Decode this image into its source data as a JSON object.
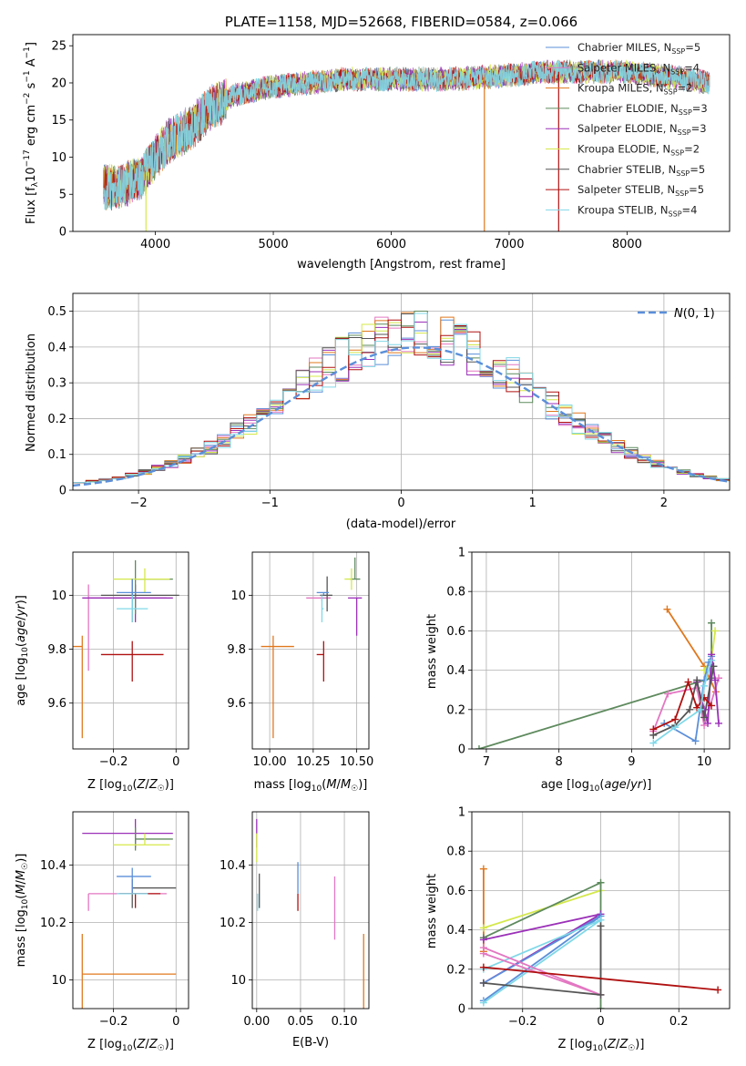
{
  "chart_data": [
    {
      "id": "spectrum",
      "type": "line",
      "title": "PLATE=1158, MJD=52668, FIBERID=0584, z=0.066",
      "xlabel": "wavelength [Angstrom, rest frame]",
      "ylabel": "Flux [f_λ 10^-17 erg cm^-2 s^-1 A^-1]",
      "xlim": [
        3300,
        8870
      ],
      "ylim": [
        0,
        26.5
      ],
      "xticks": [
        4000,
        5000,
        6000,
        7000,
        8000
      ],
      "yticks": [
        0,
        5,
        10,
        15,
        20,
        25
      ],
      "grid": false,
      "legend_position": "right",
      "continuum": {
        "x": [
          3560,
          3700,
          3900,
          4000,
          4100,
          4300,
          4500,
          4700,
          5000,
          5300,
          5600,
          6000,
          6500,
          7000,
          7300,
          7600,
          8000,
          8500,
          8700
        ],
        "y": [
          6,
          6,
          7.5,
          10,
          12,
          14,
          17,
          18.5,
          19.5,
          20,
          20.5,
          20.5,
          20.5,
          21,
          21.5,
          21.5,
          21.5,
          20.5,
          20
        ]
      },
      "series": [
        {
          "name": "Chabrier MILES, N_SSP=5",
          "color": "#5b8fd9"
        },
        {
          "name": "Salpeter MILES, N_SSP=4",
          "color": "#e377c2"
        },
        {
          "name": "Kroupa MILES, N_SSP=2",
          "color": "#e0781e"
        },
        {
          "name": "Chabrier ELODIE, N_SSP=3",
          "color": "#5e8a5e"
        },
        {
          "name": "Salpeter ELODIE, N_SSP=3",
          "color": "#9b30b8"
        },
        {
          "name": "Kroupa ELODIE, N_SSP=2",
          "color": "#d4e84a"
        },
        {
          "name": "Chabrier STELIB, N_SSP=5",
          "color": "#555555"
        },
        {
          "name": "Salpeter STELIB, N_SSP=5",
          "color": "#b01010"
        },
        {
          "name": "Kroupa STELIB, N_SSP=4",
          "color": "#80d8e8"
        }
      ]
    },
    {
      "id": "residuals",
      "type": "line",
      "xlabel": "(data-model)/error",
      "ylabel": "Normed distribution",
      "xlim": [
        -2.5,
        2.5
      ],
      "ylim": [
        0,
        0.55
      ],
      "xticks": [
        -2,
        -1,
        0,
        1,
        2
      ],
      "yticks": [
        0.0,
        0.1,
        0.2,
        0.3,
        0.4,
        0.5
      ],
      "grid": true,
      "legend": "N(0, 1)",
      "legend_position": "top-right",
      "reference": {
        "mean": 0.12,
        "sigma": 1.0
      },
      "binning": {
        "start": -2.5,
        "width": 0.1,
        "count": 50
      }
    },
    {
      "id": "age_vs_Z",
      "type": "scatter",
      "xlabel": "Z [log10(Z/Z☉)]",
      "ylabel": "age [log10(age/yr)]",
      "xlim": [
        -0.33,
        0.04
      ],
      "ylim": [
        9.43,
        10.16
      ],
      "xticks": [
        -0.2,
        0.0
      ],
      "yticks": [
        9.6,
        9.8,
        10.0
      ],
      "grid": true,
      "points": [
        {
          "color": "#e0781e",
          "x": -0.3,
          "y": 9.81,
          "xerr": [
            0.3,
            0.0
          ],
          "yerr": [
            0.34,
            0.04
          ]
        },
        {
          "color": "#b01010",
          "x": -0.14,
          "y": 9.78,
          "xerr": [
            0.1,
            0.1
          ],
          "yerr": [
            0.1,
            0.05
          ]
        },
        {
          "color": "#e377c2",
          "x": -0.28,
          "y": 9.99,
          "xerr": [
            0.0,
            0.25
          ],
          "yerr": [
            0.27,
            0.05
          ]
        },
        {
          "color": "#9b30b8",
          "x": -0.13,
          "y": 9.99,
          "xerr": [
            0.17,
            0.12
          ],
          "yerr": [
            0.09,
            0.05
          ]
        },
        {
          "color": "#5e8a5e",
          "x": -0.13,
          "y": 10.06,
          "xerr": [
            0.0,
            0.12
          ],
          "yerr": [
            0.13,
            0.07
          ]
        },
        {
          "color": "#d4e84a",
          "x": -0.1,
          "y": 10.06,
          "xerr": [
            0.1,
            0.08
          ],
          "yerr": [
            0.05,
            0.04
          ]
        },
        {
          "color": "#555555",
          "x": -0.14,
          "y": 10.0,
          "xerr": [
            0.1,
            0.15
          ],
          "yerr": [
            0.1,
            0.06
          ]
        },
        {
          "color": "#5b8fd9",
          "x": -0.14,
          "y": 10.01,
          "xerr": [
            0.05,
            0.06
          ],
          "yerr": [
            0.07,
            0.05
          ]
        },
        {
          "color": "#80d8e8",
          "x": -0.14,
          "y": 9.95,
          "xerr": [
            0.05,
            0.05
          ],
          "yerr": [
            0.05,
            0.05
          ]
        }
      ]
    },
    {
      "id": "age_vs_mass",
      "type": "scatter",
      "xlabel": "mass [log10(M/M☉)]",
      "ylabel": "",
      "xlim": [
        9.9,
        10.57
      ],
      "ylim": [
        9.43,
        10.16
      ],
      "xticks": [
        10.0,
        10.25,
        10.5
      ],
      "xticklabels": [
        "10.00",
        "10.25",
        "10.50"
      ],
      "yticks": [
        9.6,
        9.8,
        10.0
      ],
      "grid": true,
      "points": [
        {
          "color": "#e0781e",
          "x": 10.02,
          "y": 9.81,
          "xerr": [
            0.07,
            0.12
          ],
          "yerr": [
            0.34,
            0.04
          ]
        },
        {
          "color": "#b01010",
          "x": 10.31,
          "y": 9.78,
          "xerr": [
            0.04,
            0.0
          ],
          "yerr": [
            0.1,
            0.05
          ]
        },
        {
          "color": "#e377c2",
          "x": 10.3,
          "y": 9.99,
          "xerr": [
            0.09,
            0.05
          ],
          "yerr": [
            0.01,
            0.0
          ]
        },
        {
          "color": "#9b30b8",
          "x": 10.5,
          "y": 9.99,
          "xerr": [
            0.05,
            0.03
          ],
          "yerr": [
            0.14,
            0.0
          ]
        },
        {
          "color": "#5e8a5e",
          "x": 10.49,
          "y": 10.06,
          "xerr": [
            0.03,
            0.03
          ],
          "yerr": [
            0.0,
            0.08
          ]
        },
        {
          "color": "#d4e84a",
          "x": 10.47,
          "y": 10.06,
          "xerr": [
            0.04,
            0.0
          ],
          "yerr": [
            0.04,
            0.04
          ]
        },
        {
          "color": "#555555",
          "x": 10.33,
          "y": 10.0,
          "xerr": [
            0.04,
            0.03
          ],
          "yerr": [
            0.06,
            0.07
          ]
        },
        {
          "color": "#5b8fd9",
          "x": 10.31,
          "y": 10.01,
          "xerr": [
            0.04,
            0.03
          ],
          "yerr": [
            0.01,
            0.0
          ]
        },
        {
          "color": "#80d8e8",
          "x": 10.3,
          "y": 9.95,
          "xerr": [
            0.0,
            0.01
          ],
          "yerr": [
            0.05,
            0.05
          ]
        }
      ]
    },
    {
      "id": "weight_vs_age",
      "type": "line",
      "xlabel": "age [log10(age/yr)]",
      "ylabel": "mass weight",
      "xlim": [
        6.8,
        10.35
      ],
      "ylim": [
        0,
        1.0
      ],
      "xticks": [
        7,
        8,
        9,
        10
      ],
      "yticks": [
        0.0,
        0.2,
        0.4,
        0.6,
        0.8,
        1.0
      ],
      "grid": true,
      "series": [
        {
          "color": "#5e8a5e",
          "x": [
            6.9,
            10.1,
            10.1
          ],
          "y": [
            0.0,
            0.36,
            0.64
          ]
        },
        {
          "color": "#e0781e",
          "x": [
            9.49,
            10.0,
            10.16
          ],
          "y": [
            0.71,
            0.42,
            0.29
          ]
        },
        {
          "color": "#d4e84a",
          "x": [
            10.0,
            10.1,
            10.15
          ],
          "y": [
            0.4,
            0.45,
            0.6
          ]
        },
        {
          "color": "#5b8fd9",
          "x": [
            9.45,
            9.88,
            10.0,
            10.06,
            10.1
          ],
          "y": [
            0.13,
            0.04,
            0.35,
            0.44,
            0.47
          ]
        },
        {
          "color": "#e377c2",
          "x": [
            9.3,
            9.5,
            9.9,
            10.0,
            10.2
          ],
          "y": [
            0.09,
            0.28,
            0.31,
            0.12,
            0.36
          ]
        },
        {
          "color": "#9b30b8",
          "x": [
            9.9,
            10.0,
            10.05,
            10.1,
            10.15,
            10.2
          ],
          "y": [
            0.34,
            0.2,
            0.13,
            0.48,
            0.35,
            0.13
          ]
        },
        {
          "color": "#555555",
          "x": [
            9.3,
            9.6,
            9.8,
            9.9,
            10.0,
            10.13
          ],
          "y": [
            0.07,
            0.12,
            0.2,
            0.35,
            0.16,
            0.42
          ]
        },
        {
          "color": "#b01010",
          "x": [
            9.3,
            9.6,
            9.78,
            9.9,
            10.0,
            10.1
          ],
          "y": [
            0.1,
            0.15,
            0.34,
            0.21,
            0.26,
            0.22
          ]
        },
        {
          "color": "#80d8e8",
          "x": [
            9.3,
            9.6,
            9.95,
            10.0,
            10.1
          ],
          "y": [
            0.03,
            0.11,
            0.2,
            0.32,
            0.45
          ]
        }
      ]
    },
    {
      "id": "mass_vs_Z",
      "type": "scatter",
      "xlabel": "Z [log10(Z/Z☉)]",
      "ylabel": "mass [log10(M/M☉)]",
      "xlim": [
        -0.33,
        0.04
      ],
      "ylim": [
        9.9,
        10.585
      ],
      "xticks": [
        -0.2,
        0.0
      ],
      "yticks": [
        10.0,
        10.2,
        10.4
      ],
      "grid": true,
      "points": [
        {
          "color": "#e0781e",
          "x": -0.3,
          "y": 10.02,
          "xerr": [
            0.0,
            0.3
          ],
          "yerr": [
            0.12,
            0.14
          ]
        },
        {
          "color": "#9b30b8",
          "x": -0.13,
          "y": 10.51,
          "xerr": [
            0.17,
            0.12
          ],
          "yerr": [
            0.05,
            0.05
          ]
        },
        {
          "color": "#5e8a5e",
          "x": -0.13,
          "y": 10.49,
          "xerr": [
            0.0,
            0.12
          ],
          "yerr": [
            0.04,
            0.04
          ]
        },
        {
          "color": "#d4e84a",
          "x": -0.1,
          "y": 10.47,
          "xerr": [
            0.1,
            0.08
          ],
          "yerr": [
            0.0,
            0.04
          ]
        },
        {
          "color": "#555555",
          "x": -0.14,
          "y": 10.32,
          "xerr": [
            0.0,
            0.14
          ],
          "yerr": [
            0.07,
            0.03
          ]
        },
        {
          "color": "#5b8fd9",
          "x": -0.14,
          "y": 10.36,
          "xerr": [
            0.05,
            0.06
          ],
          "yerr": [
            0.06,
            0.03
          ]
        },
        {
          "color": "#e377c2",
          "x": -0.28,
          "y": 10.3,
          "xerr": [
            0.0,
            0.25
          ],
          "yerr": [
            0.06,
            0.0
          ]
        },
        {
          "color": "#b01010",
          "x": -0.13,
          "y": 10.3,
          "xerr": [
            0.05,
            0.08
          ],
          "yerr": [
            0.05,
            0.0
          ]
        },
        {
          "color": "#80d8e8",
          "x": -0.14,
          "y": 10.3,
          "xerr": [
            0.05,
            0.05
          ],
          "yerr": [
            0.0,
            0.0
          ]
        }
      ]
    },
    {
      "id": "mass_vs_EBV",
      "type": "scatter",
      "xlabel": "E(B-V)",
      "ylabel": "",
      "xlim": [
        -0.005,
        0.128
      ],
      "ylim": [
        9.9,
        10.585
      ],
      "xticks": [
        0.0,
        0.05,
        0.1
      ],
      "xticklabels": [
        "0.00",
        "0.05",
        "0.10"
      ],
      "yticks": [
        10.0,
        10.2,
        10.4
      ],
      "grid": true,
      "points": [
        {
          "color": "#e0781e",
          "x": 0.122,
          "y": 10.02,
          "xerr": [
            0,
            0
          ],
          "yerr": [
            0.12,
            0.14
          ]
        },
        {
          "color": "#e377c2",
          "x": 0.089,
          "y": 10.3,
          "xerr": [
            0,
            0
          ],
          "yerr": [
            0.16,
            0.06
          ]
        },
        {
          "color": "#b01010",
          "x": 0.047,
          "y": 10.3,
          "xerr": [
            0,
            0
          ],
          "yerr": [
            0.06,
            0.0
          ]
        },
        {
          "color": "#5b8fd9",
          "x": 0.047,
          "y": 10.36,
          "xerr": [
            0,
            0
          ],
          "yerr": [
            0.06,
            0.05
          ]
        },
        {
          "color": "#555555",
          "x": 0.003,
          "y": 10.32,
          "xerr": [
            0,
            0
          ],
          "yerr": [
            0.07,
            0.05
          ]
        },
        {
          "color": "#9b30b8",
          "x": 0.0,
          "y": 10.51,
          "xerr": [
            0,
            0
          ],
          "yerr": [
            0.05,
            0.05
          ]
        },
        {
          "color": "#d4e84a",
          "x": 0.0,
          "y": 10.47,
          "xerr": [
            0,
            0
          ],
          "yerr": [
            0.06,
            0.04
          ]
        },
        {
          "color": "#80d8e8",
          "x": 0.001,
          "y": 10.3,
          "xerr": [
            0,
            0
          ],
          "yerr": [
            0.06,
            0.0
          ]
        }
      ]
    },
    {
      "id": "weight_vs_Z",
      "type": "line",
      "xlabel": "Z [log10(Z/Z☉)]",
      "ylabel": "mass weight",
      "xlim": [
        -0.33,
        0.33
      ],
      "ylim": [
        0,
        1.0
      ],
      "xticks": [
        -0.2,
        0.0,
        0.2
      ],
      "yticks": [
        0.0,
        0.2,
        0.4,
        0.6,
        0.8,
        1.0
      ],
      "grid": true,
      "series": [
        {
          "color": "#e0781e",
          "x": [
            -0.3,
            -0.3
          ],
          "y": [
            0.71,
            0.29
          ]
        },
        {
          "color": "#d4e84a",
          "x": [
            -0.3,
            0.0
          ],
          "y": [
            0.41,
            0.6
          ]
        },
        {
          "color": "#5e8a5e",
          "x": [
            -0.3,
            0.0,
            0.0
          ],
          "y": [
            0.36,
            0.64,
            0.0
          ]
        },
        {
          "color": "#9b30b8",
          "x": [
            -0.3,
            0.0,
            -0.3
          ],
          "y": [
            0.13,
            0.48,
            0.35
          ]
        },
        {
          "color": "#5b8fd9",
          "x": [
            -0.3,
            0.0,
            -0.3
          ],
          "y": [
            0.04,
            0.47,
            0.13
          ]
        },
        {
          "color": "#80d8e8",
          "x": [
            -0.3,
            0.0,
            -0.3
          ],
          "y": [
            0.03,
            0.45,
            0.2
          ]
        },
        {
          "color": "#e377c2",
          "x": [
            -0.3,
            0.0,
            -0.3
          ],
          "y": [
            0.28,
            0.07,
            0.31
          ]
        },
        {
          "color": "#555555",
          "x": [
            -0.3,
            0.0,
            0.0
          ],
          "y": [
            0.13,
            0.07,
            0.42
          ]
        },
        {
          "color": "#b01010",
          "x": [
            -0.3,
            0.3
          ],
          "y": [
            0.21,
            0.095
          ]
        }
      ]
    }
  ]
}
